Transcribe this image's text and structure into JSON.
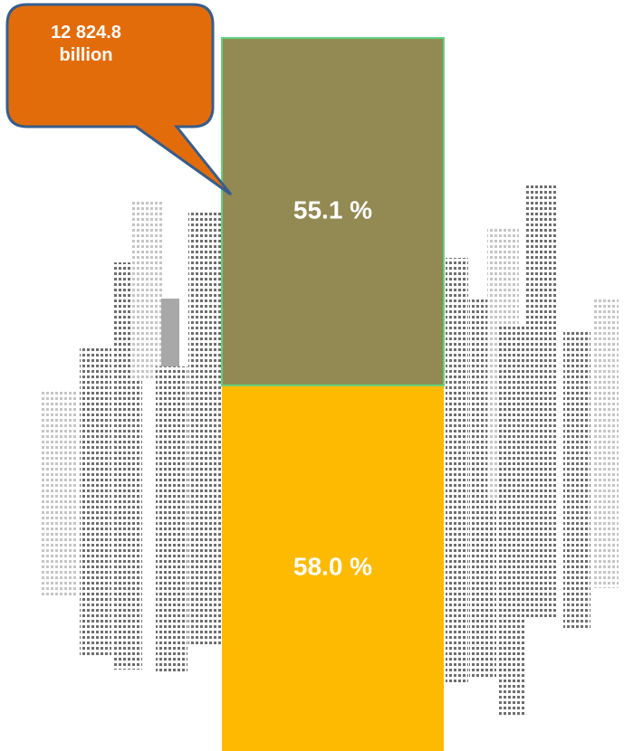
{
  "chart_data": {
    "type": "bar",
    "stacked": true,
    "annotation": "12 824.8 billion",
    "series": [
      {
        "color": "#fdba00",
        "values": [
          58.0
        ],
        "value_labels": [
          "58.0 %"
        ]
      },
      {
        "color": "#938953",
        "values": [
          55.1
        ],
        "value_labels": [
          "55.1 %"
        ]
      }
    ]
  }
}
